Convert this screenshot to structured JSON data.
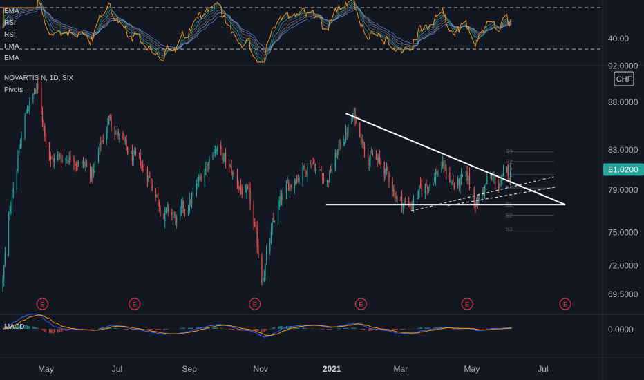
{
  "symbol_title": "NOVARTIS N, 1D, SIX",
  "indicator_pivots": "Pivots",
  "rsi_pane": {
    "labels": [
      "EMA",
      "RSI",
      "RSI",
      "EMA",
      "EMA"
    ],
    "axis_value": "40.00"
  },
  "macd_pane": {
    "label": "MACD",
    "axis_value": "0.0000"
  },
  "price_axis": {
    "unit": "CHF",
    "ticks": [
      "92.0000",
      "88.0000",
      "83.0000",
      "79.0000",
      "75.0000",
      "72.0000",
      "69.5000"
    ],
    "current_price": "81.0200",
    "current_price_color": "#26a69a"
  },
  "time_axis": {
    "ticks": [
      "May",
      "Jul",
      "Sep",
      "Nov",
      "2021",
      "Mar",
      "May",
      "Jul"
    ],
    "bold_tick": "2021"
  },
  "earnings_marker": "E",
  "pivot_levels": [
    "R3",
    "R2",
    "R1",
    "P",
    "S1",
    "S2",
    "S3"
  ],
  "colors": {
    "background": "#131722",
    "up": "#26a69a",
    "down": "#ef5350",
    "trendline": "#ffffff",
    "earnings": "#f23645",
    "rsi_line": "#f7931a",
    "macd_line": "#2962ff",
    "signal_line": "#ff9800"
  },
  "chart_data": {
    "type": "candlestick",
    "title": "NOVARTIS N, 1D, SIX",
    "ylabel": "CHF",
    "ylim": [
      68.5,
      92.5
    ],
    "ylog": true,
    "last_price": 81.02,
    "x_start": "2020-03-25",
    "x_end": "2021-07-20",
    "price_path": [
      {
        "date": "2020-03-25",
        "close": 70.5
      },
      {
        "date": "2020-04-02",
        "close": 79.0
      },
      {
        "date": "2020-04-15",
        "close": 87.5
      },
      {
        "date": "2020-04-23",
        "close": 89.5
      },
      {
        "date": "2020-05-05",
        "close": 82.0
      },
      {
        "date": "2020-05-25",
        "close": 82.5
      },
      {
        "date": "2020-06-10",
        "close": 80.5
      },
      {
        "date": "2020-06-25",
        "close": 86.5
      },
      {
        "date": "2020-07-10",
        "close": 82.5
      },
      {
        "date": "2020-07-28",
        "close": 80.5
      },
      {
        "date": "2020-08-10",
        "close": 77.0
      },
      {
        "date": "2020-08-22",
        "close": 76.0
      },
      {
        "date": "2020-09-05",
        "close": 78.5
      },
      {
        "date": "2020-09-22",
        "close": 83.5
      },
      {
        "date": "2020-10-05",
        "close": 81.0
      },
      {
        "date": "2020-10-22",
        "close": 78.0
      },
      {
        "date": "2020-11-02",
        "close": 71.0
      },
      {
        "date": "2020-11-15",
        "close": 77.0
      },
      {
        "date": "2020-12-01",
        "close": 80.5
      },
      {
        "date": "2020-12-15",
        "close": 82.0
      },
      {
        "date": "2020-12-28",
        "close": 80.0
      },
      {
        "date": "2021-01-10",
        "close": 84.0
      },
      {
        "date": "2021-01-20",
        "close": 86.5
      },
      {
        "date": "2021-02-02",
        "close": 82.5
      },
      {
        "date": "2021-02-15",
        "close": 81.0
      },
      {
        "date": "2021-02-28",
        "close": 78.0
      },
      {
        "date": "2021-03-08",
        "close": 77.5
      },
      {
        "date": "2021-03-20",
        "close": 79.0
      },
      {
        "date": "2021-04-05",
        "close": 81.5
      },
      {
        "date": "2021-04-15",
        "close": 79.5
      },
      {
        "date": "2021-04-28",
        "close": 79.8
      },
      {
        "date": "2021-05-05",
        "close": 77.8
      },
      {
        "date": "2021-05-15",
        "close": 80.0
      },
      {
        "date": "2021-05-25",
        "close": 79.5
      },
      {
        "date": "2021-06-05",
        "close": 81.02
      }
    ],
    "earnings_dates": [
      "2020-04-28",
      "2020-07-16",
      "2020-10-27",
      "2021-01-26",
      "2021-04-27",
      "2021-07-20"
    ],
    "drawings": {
      "horizontal_support": {
        "from": "2020-12-27",
        "to": "2021-07-20",
        "price": 77.6
      },
      "descending_trendline": {
        "from": "2021-01-13",
        "from_price": 86.8,
        "to": "2021-07-20",
        "to_price": 77.6
      },
      "dashed_trendline_1": {
        "from": "2021-03-10",
        "from_price": 77.0,
        "to": "2021-07-10",
        "to_price": 80.3
      },
      "dashed_trendline_2": {
        "from": "2021-04-10",
        "from_price": 77.5,
        "to": "2021-07-12",
        "to_price": 79.3
      }
    },
    "pivots": {
      "R3": 82.8,
      "R2": 81.8,
      "R1": 80.5,
      "P": 79.2,
      "S1": 77.6,
      "S2": 76.6,
      "S3": 75.3
    },
    "pivot_range": {
      "from": "2021-05-31",
      "to": "2021-07-10"
    }
  }
}
